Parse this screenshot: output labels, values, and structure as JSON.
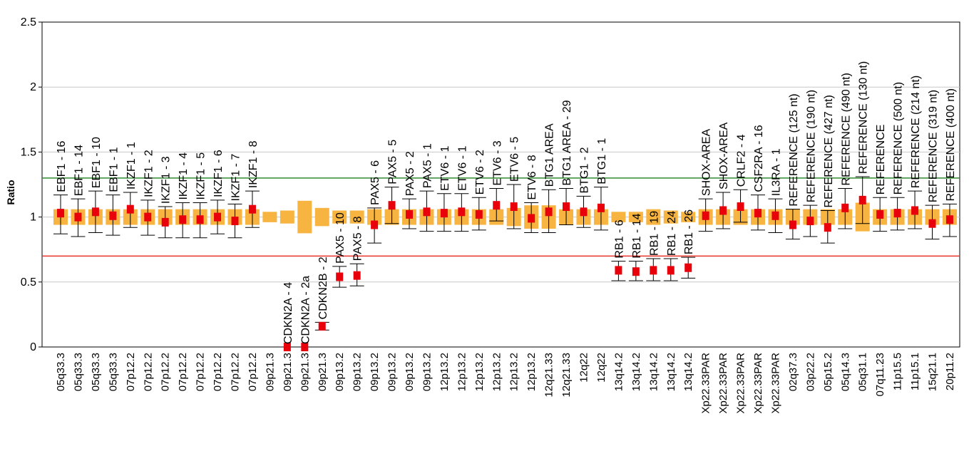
{
  "chart_data": {
    "type": "scatter",
    "title": "",
    "xlabel": "",
    "ylabel": "Ratio",
    "ylim": [
      0,
      2.5
    ],
    "yticks": [
      "0",
      "0.5",
      "1",
      "1.5",
      "2",
      "2.5"
    ],
    "grid": true,
    "threshold_lines": [
      {
        "value": 1.3,
        "color": "#2e8b2e"
      },
      {
        "value": 0.7,
        "color": "#e8322a"
      }
    ],
    "colors": {
      "point": "#e8000b",
      "box": "#f7b441",
      "whisker": "#000000",
      "grid": "#c8c8c8"
    },
    "points": [
      {
        "probe": "EBF1 - 16",
        "locus": "05q33.3",
        "ratio": 1.03,
        "lo": 0.87,
        "hi": 1.17
      },
      {
        "probe": "EBF1 - 14",
        "locus": "05q33.3",
        "ratio": 1.0,
        "lo": 0.85,
        "hi": 1.14
      },
      {
        "probe": "EBF1 - 10",
        "locus": "05q33.3",
        "ratio": 1.04,
        "lo": 0.88,
        "hi": 1.2
      },
      {
        "probe": "EBF1 - 1",
        "locus": "05q33.3",
        "ratio": 1.01,
        "lo": 0.86,
        "hi": 1.17
      },
      {
        "probe": "IKZF1 - 1",
        "locus": "07p12.2",
        "ratio": 1.06,
        "lo": 0.92,
        "hi": 1.19
      },
      {
        "probe": "IKZF1 - 2",
        "locus": "07p12.2",
        "ratio": 1.0,
        "lo": 0.86,
        "hi": 1.13
      },
      {
        "probe": "IKZF1 - 3",
        "locus": "07p12.2",
        "ratio": 0.96,
        "lo": 0.84,
        "hi": 1.08
      },
      {
        "probe": "IKZF1 - 4",
        "locus": "07p12.2",
        "ratio": 0.98,
        "lo": 0.84,
        "hi": 1.11
      },
      {
        "probe": "IKZF1 - 5",
        "locus": "07p12.2",
        "ratio": 0.98,
        "lo": 0.84,
        "hi": 1.11
      },
      {
        "probe": "IKZF1 - 6",
        "locus": "07p12.2",
        "ratio": 1.0,
        "lo": 0.87,
        "hi": 1.13
      },
      {
        "probe": "IKZF1 - 7",
        "locus": "07p12.2",
        "ratio": 0.97,
        "lo": 0.84,
        "hi": 1.1
      },
      {
        "probe": "IKZF1 - 8",
        "locus": "07p12.2",
        "ratio": 1.06,
        "lo": 0.92,
        "hi": 1.2
      },
      {
        "probe": "",
        "locus": "09p21.3",
        "ratio": null,
        "lo": null,
        "hi": null
      },
      {
        "probe": "CDKN2A - 4",
        "locus": "09p21.3",
        "ratio": 0.0,
        "lo": 0.0,
        "hi": 0.0
      },
      {
        "probe": "CDKN2A - 2a",
        "locus": "09p21.3",
        "ratio": 0.0,
        "lo": 0.0,
        "hi": 0.0
      },
      {
        "probe": "CDKN2B - 2",
        "locus": "09p21.3",
        "ratio": 0.16,
        "lo": 0.13,
        "hi": 0.19
      },
      {
        "probe": "PAX5 - 10",
        "locus": "09p13.2",
        "ratio": 0.54,
        "lo": 0.46,
        "hi": 0.62
      },
      {
        "probe": "PAX5 - 8",
        "locus": "09p13.2",
        "ratio": 0.55,
        "lo": 0.47,
        "hi": 0.64
      },
      {
        "probe": "PAX5 - 6",
        "locus": "09p13.2",
        "ratio": 0.94,
        "lo": 0.8,
        "hi": 1.07
      },
      {
        "probe": "PAX5 - 5",
        "locus": "09p13.2",
        "ratio": 1.09,
        "lo": 0.95,
        "hi": 1.23
      },
      {
        "probe": "PAX5 - 2",
        "locus": "09p13.2",
        "ratio": 1.02,
        "lo": 0.91,
        "hi": 1.14
      },
      {
        "probe": "PAX5 - 1",
        "locus": "09p13.2",
        "ratio": 1.04,
        "lo": 0.89,
        "hi": 1.2
      },
      {
        "probe": "ETV6 - 1",
        "locus": "12p13.2",
        "ratio": 1.03,
        "lo": 0.89,
        "hi": 1.18
      },
      {
        "probe": "ETV6 - 1",
        "locus": "12p13.2",
        "ratio": 1.04,
        "lo": 0.89,
        "hi": 1.18
      },
      {
        "probe": "ETV6 - 2",
        "locus": "12p13.2",
        "ratio": 1.02,
        "lo": 0.9,
        "hi": 1.15
      },
      {
        "probe": "ETV6 - 3",
        "locus": "12p13.2",
        "ratio": 1.09,
        "lo": 0.97,
        "hi": 1.22
      },
      {
        "probe": "ETV6 - 5",
        "locus": "12p13.2",
        "ratio": 1.08,
        "lo": 0.91,
        "hi": 1.25
      },
      {
        "probe": "ETV6 - 8",
        "locus": "12p13.2",
        "ratio": 0.99,
        "lo": 0.88,
        "hi": 1.11
      },
      {
        "probe": "BTG1 AREA",
        "locus": "12q21.33",
        "ratio": 1.04,
        "lo": 0.88,
        "hi": 1.21
      },
      {
        "probe": "BTG1 AREA - 29",
        "locus": "12q21.33",
        "ratio": 1.08,
        "lo": 0.94,
        "hi": 1.22
      },
      {
        "probe": "BTG1 - 2",
        "locus": "12q22",
        "ratio": 1.04,
        "lo": 0.92,
        "hi": 1.16
      },
      {
        "probe": "BTG1 - 1",
        "locus": "12q22",
        "ratio": 1.07,
        "lo": 0.9,
        "hi": 1.23
      },
      {
        "probe": "RB1 - 6",
        "locus": "13q14.2",
        "ratio": 0.59,
        "lo": 0.51,
        "hi": 0.66
      },
      {
        "probe": "RB1 - 14",
        "locus": "13q14.2",
        "ratio": 0.58,
        "lo": 0.51,
        "hi": 0.66
      },
      {
        "probe": "RB1 - 19",
        "locus": "13q14.2",
        "ratio": 0.59,
        "lo": 0.51,
        "hi": 0.68
      },
      {
        "probe": "RB1 - 24",
        "locus": "13q14.2",
        "ratio": 0.59,
        "lo": 0.51,
        "hi": 0.68
      },
      {
        "probe": "RB1 - 26",
        "locus": "13q14.2",
        "ratio": 0.61,
        "lo": 0.53,
        "hi": 0.69
      },
      {
        "probe": "SHOX-AREA",
        "locus": "Xp22.33PAR",
        "ratio": 1.01,
        "lo": 0.89,
        "hi": 1.14
      },
      {
        "probe": "SHOX-AREA",
        "locus": "Xp22.33PAR",
        "ratio": 1.05,
        "lo": 0.91,
        "hi": 1.19
      },
      {
        "probe": "CRLF2 - 4",
        "locus": "Xp22.33PAR",
        "ratio": 1.08,
        "lo": 0.96,
        "hi": 1.21
      },
      {
        "probe": "CSF2RA - 16",
        "locus": "Xp22.33PAR",
        "ratio": 1.03,
        "lo": 0.9,
        "hi": 1.17
      },
      {
        "probe": "IL3RA - 1",
        "locus": "Xp22.33PAR",
        "ratio": 1.01,
        "lo": 0.88,
        "hi": 1.14
      },
      {
        "probe": "REFERENCE (125 nt)",
        "locus": "02q37.3",
        "ratio": 0.94,
        "lo": 0.83,
        "hi": 1.06
      },
      {
        "probe": "REFERENCE (190 nt)",
        "locus": "03p22.2",
        "ratio": 0.97,
        "lo": 0.85,
        "hi": 1.09
      },
      {
        "probe": "REFERENCE (427 nt)",
        "locus": "05p15.2",
        "ratio": 0.92,
        "lo": 0.8,
        "hi": 1.05
      },
      {
        "probe": "REFERENCE (490 nt)",
        "locus": "05q14.3",
        "ratio": 1.07,
        "lo": 0.91,
        "hi": 1.22
      },
      {
        "probe": "REFERENCE (130 nt)",
        "locus": "05q31.1",
        "ratio": 1.13,
        "lo": 0.95,
        "hi": 1.31
      },
      {
        "probe": "REFERENCE",
        "locus": "07q11.23",
        "ratio": 1.02,
        "lo": 0.89,
        "hi": 1.15
      },
      {
        "probe": "REFERENCE (500 nt)",
        "locus": "11p15.5",
        "ratio": 1.03,
        "lo": 0.9,
        "hi": 1.15
      },
      {
        "probe": "REFERENCE (214 nt)",
        "locus": "11p15.1",
        "ratio": 1.05,
        "lo": 0.91,
        "hi": 1.2
      },
      {
        "probe": "REFERENCE (319 nt)",
        "locus": "15q21.1",
        "ratio": 0.95,
        "lo": 0.83,
        "hi": 1.09
      },
      {
        "probe": "REFERENCE (400 nt)",
        "locus": "20p11.2",
        "ratio": 0.98,
        "lo": 0.85,
        "hi": 1.1
      }
    ],
    "box_heights": [
      0.12,
      0.12,
      0.12,
      0.12,
      0.12,
      0.12,
      0.12,
      0.12,
      0.12,
      0.12,
      0.12,
      0.12,
      0.08,
      0.1,
      0.25,
      0.14,
      0.1,
      0.1,
      0.12,
      0.12,
      0.12,
      0.12,
      0.12,
      0.12,
      0.12,
      0.12,
      0.14,
      0.18,
      0.18,
      0.12,
      0.12,
      0.12,
      0.08,
      0.08,
      0.12,
      0.1,
      0.08,
      0.12,
      0.12,
      0.12,
      0.12,
      0.12,
      0.12,
      0.12,
      0.12,
      0.12,
      0.22,
      0.12,
      0.12,
      0.12,
      0.12,
      0.12
    ]
  }
}
